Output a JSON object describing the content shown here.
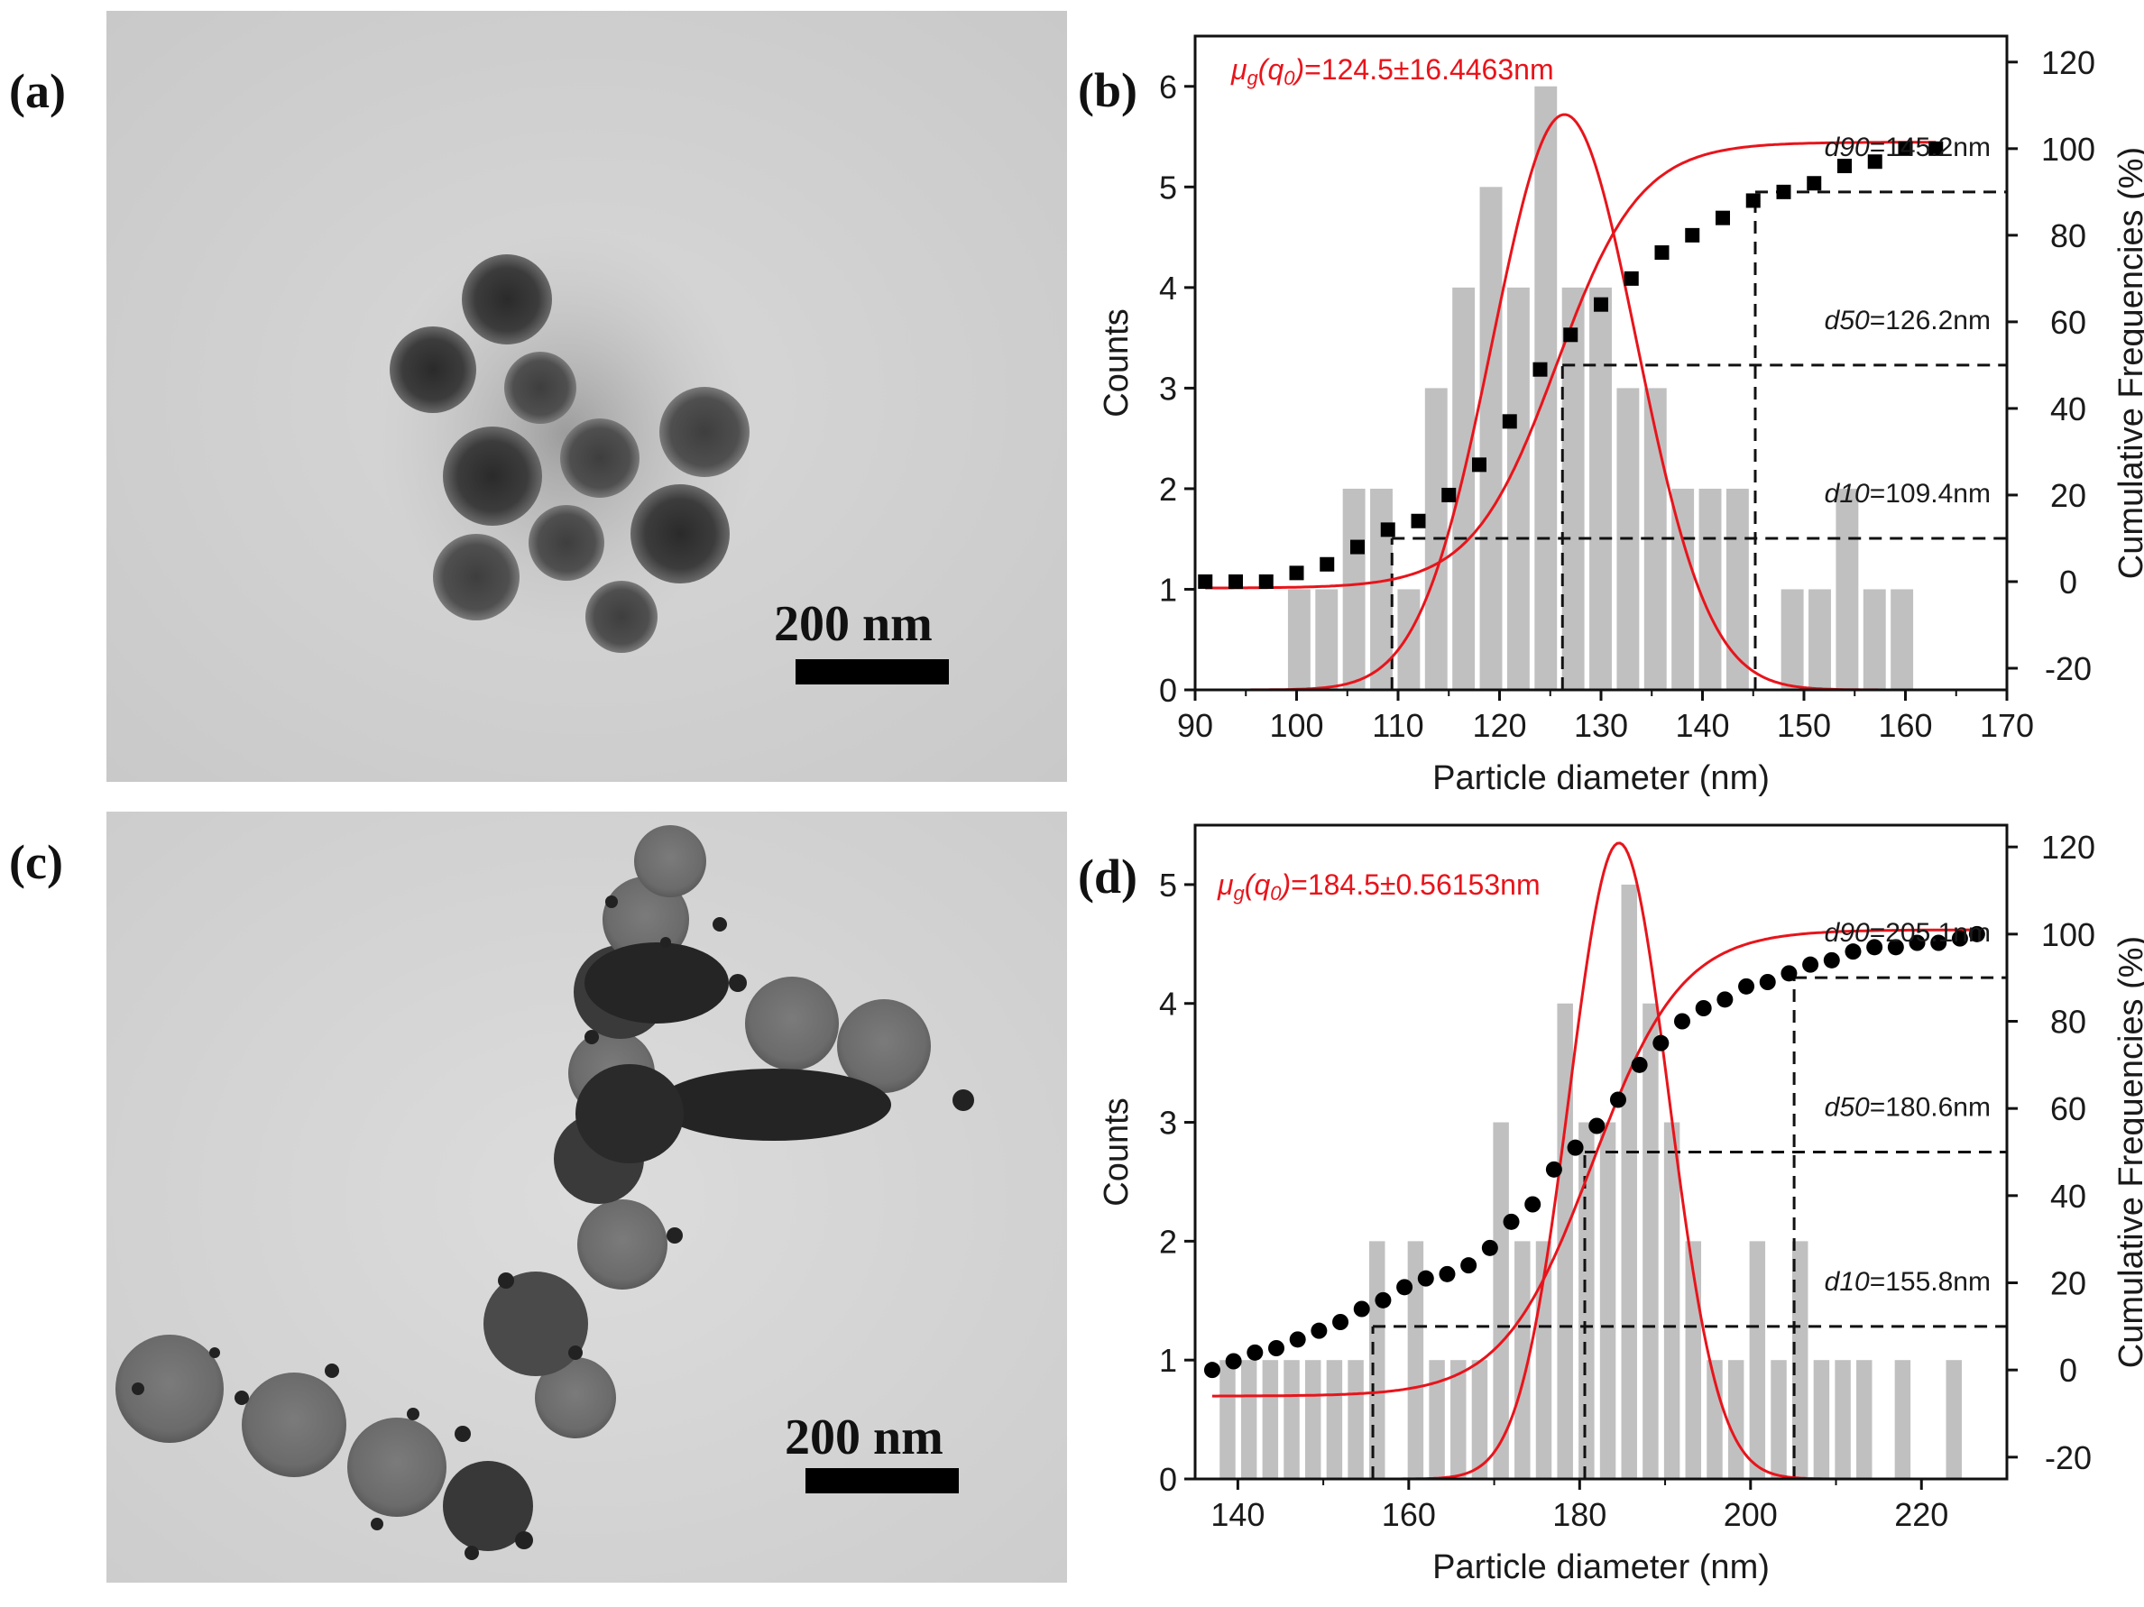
{
  "panels": {
    "a": {
      "label": "(a)",
      "scale_text": "200 nm"
    },
    "c": {
      "label": "(c)",
      "scale_text": "200 nm"
    },
    "b": {
      "label": "(b)"
    },
    "d": {
      "label": "(d)"
    }
  },
  "colors": {
    "histogram": "#c0c0c0",
    "fit": "#e8141b",
    "points": "#000000",
    "dash": "#111111"
  },
  "chart_data": [
    {
      "type": "bar",
      "panel": "b",
      "title": "",
      "fit_label": {
        "mu": "μ",
        "sub": "g",
        "open": "(q",
        "sub0": "0",
        "close": ")",
        "value": "=124.5±16.4463nm"
      },
      "xlabel": "Particle diameter (nm)",
      "ylabel": "Counts",
      "y2label": "Cumulative Frequencies (%)",
      "xlim": [
        90,
        170
      ],
      "ylim": [
        0,
        6.5
      ],
      "y2lim": [
        -25,
        126
      ],
      "xticks": [
        90,
        100,
        110,
        120,
        130,
        140,
        150,
        160,
        170
      ],
      "yticks": [
        0,
        1,
        2,
        3,
        4,
        5,
        6
      ],
      "y2ticks": [
        -20,
        0,
        20,
        40,
        60,
        80,
        100,
        120
      ],
      "bin_width": 2.7,
      "histogram": {
        "x": [
          100.5,
          103.2,
          105.9,
          108.6,
          111.3,
          114.0,
          116.7,
          119.4,
          122.1,
          124.8,
          127.5,
          130.2,
          132.9,
          135.6,
          138.3,
          141.0,
          143.7,
          146.4,
          149.1,
          151.8,
          154.5,
          157.2,
          159.9
        ],
        "counts": [
          1,
          1,
          2,
          2,
          1,
          3,
          4,
          5,
          4,
          6,
          4,
          4,
          3,
          3,
          2,
          2,
          2,
          0,
          1,
          1,
          2,
          1,
          1
        ]
      },
      "cumulative": {
        "x": [
          91,
          94,
          97,
          100,
          103,
          106,
          109,
          112,
          115,
          118,
          121,
          124,
          127,
          130,
          133,
          136,
          139,
          142,
          145,
          148,
          151,
          154,
          157,
          160,
          163
        ],
        "y": [
          0,
          0,
          0,
          2,
          4,
          8,
          12,
          14,
          20,
          27,
          37,
          49,
          57,
          64,
          70,
          76,
          80,
          84,
          88,
          90,
          92,
          96,
          97,
          100,
          100
        ]
      },
      "gaussian_fit": {
        "center": 126.4,
        "sigma": 7.1,
        "amplitude": 5.72
      },
      "cumulative_fit": {
        "center": 125.6,
        "width": 9.1,
        "min": -1.5,
        "max": 101.5
      },
      "percentiles": [
        {
          "name": "d90",
          "value": "=145.2nm",
          "x": 145.2,
          "y2": 90
        },
        {
          "name": "d50",
          "value": "=126.2nm",
          "x": 126.2,
          "y2": 50
        },
        {
          "name": "d10",
          "value": "=109.4nm",
          "x": 109.4,
          "y2": 10
        }
      ],
      "marker": "square"
    },
    {
      "type": "bar",
      "panel": "d",
      "title": "",
      "fit_label": {
        "mu": "μ",
        "sub": "g",
        "open": "(q",
        "sub0": "0",
        "close": ")",
        "value": "=184.5±0.56153nm"
      },
      "xlabel": "Particle diameter (nm)",
      "ylabel": "Counts",
      "y2label": "Cumulative Frequencies (%)",
      "xlim": [
        135,
        230
      ],
      "ylim": [
        0,
        5.5
      ],
      "y2lim": [
        -25,
        125
      ],
      "xticks": [
        140,
        160,
        180,
        200,
        220
      ],
      "yticks": [
        0,
        1,
        2,
        3,
        4,
        5
      ],
      "y2ticks": [
        -20,
        0,
        20,
        40,
        60,
        80,
        100,
        120
      ],
      "bin_width": 2.25,
      "histogram": {
        "x": [
          139.0,
          141.5,
          144.0,
          146.5,
          149.0,
          151.5,
          154.0,
          156.5,
          161.0,
          163.5,
          166.0,
          168.5,
          171.0,
          173.5,
          176.0,
          178.5,
          181.0,
          183.5,
          186.0,
          188.5,
          191.0,
          193.5,
          196.0,
          198.5,
          201.0,
          203.5,
          206.0,
          208.5,
          211.0,
          213.5,
          218.0,
          224.0
        ],
        "counts": [
          1,
          1,
          1,
          1,
          1,
          1,
          1,
          2,
          2,
          1,
          1,
          1,
          3,
          2,
          2,
          4,
          3,
          3,
          5,
          4,
          3,
          2,
          1,
          1,
          2,
          1,
          2,
          1,
          1,
          1,
          1,
          1
        ]
      },
      "cumulative": {
        "x": [
          137,
          139.5,
          142,
          144.5,
          147,
          149.5,
          152,
          154.5,
          157,
          159.5,
          162,
          164.5,
          167,
          169.5,
          172,
          174.5,
          177,
          179.5,
          182,
          184.5,
          187,
          189.5,
          192,
          194.5,
          197,
          199.5,
          202,
          204.5,
          207,
          209.5,
          212,
          214.5,
          217,
          219.5,
          222,
          224.5,
          226.5
        ],
        "y": [
          0,
          2,
          4,
          5,
          7,
          9,
          11,
          14,
          16,
          19,
          21,
          22,
          24,
          28,
          34,
          38,
          46,
          51,
          56,
          62,
          70,
          75,
          80,
          83,
          85,
          88,
          89,
          91,
          93,
          94,
          96,
          97,
          97,
          98,
          98,
          99,
          100
        ]
      },
      "gaussian_fit": {
        "center": 184.6,
        "sigma": 5.8,
        "amplitude": 5.35
      },
      "cumulative_fit": {
        "center": 181.5,
        "width": 11.5,
        "min": -6,
        "max": 101
      },
      "percentiles": [
        {
          "name": "d90",
          "value": "=205.1nm",
          "x": 205.1,
          "y2": 90
        },
        {
          "name": "d50",
          "value": "=180.6nm",
          "x": 180.6,
          "y2": 50
        },
        {
          "name": "d10",
          "value": "=155.8nm",
          "x": 155.8,
          "y2": 10
        }
      ],
      "marker": "circle"
    }
  ]
}
